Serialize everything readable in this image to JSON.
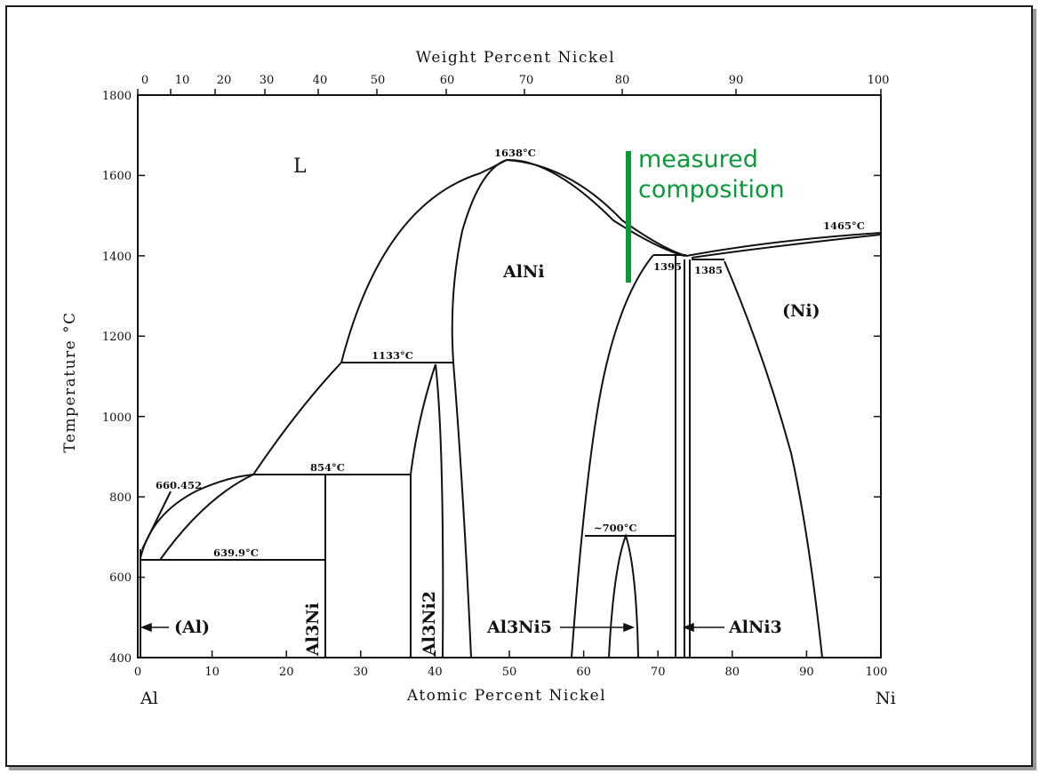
{
  "diagram": {
    "top_axis_title": "Weight Percent Nickel",
    "bottom_axis_title": "Atomic Percent Nickel",
    "left_axis_title": "Temperature °C",
    "left_end_label": "Al",
    "right_end_label": "Ni",
    "y_ticks": [
      "400",
      "600",
      "800",
      "1000",
      "1200",
      "1400",
      "1600",
      "1800"
    ],
    "x_ticks": [
      "0",
      "10",
      "20",
      "30",
      "40",
      "50",
      "60",
      "70",
      "80",
      "90",
      "100"
    ],
    "top_ticks": [
      "0",
      "10",
      "20",
      "30",
      "40",
      "50",
      "60",
      "70",
      "80",
      "90",
      "100"
    ],
    "annotations": {
      "t1638": "1638°C",
      "t1465": "1465°C",
      "t1395": "1395",
      "t1385": "1385",
      "t1133": "1133°C",
      "t854": "854°C",
      "t660": "660.452",
      "t639": "639.9°C",
      "t700": "~700°C"
    },
    "phases": {
      "liquid": "L",
      "alni": "AlNi",
      "ni": "(Ni)",
      "al": "(Al)",
      "al3ni": "Al3Ni",
      "al3ni2": "Al3Ni2",
      "al3ni5": "Al3Ni5",
      "alni3": "AlNi3"
    },
    "marker": {
      "label_line1": "measured",
      "label_line2": "composition",
      "color": "#0a9a3a"
    }
  }
}
